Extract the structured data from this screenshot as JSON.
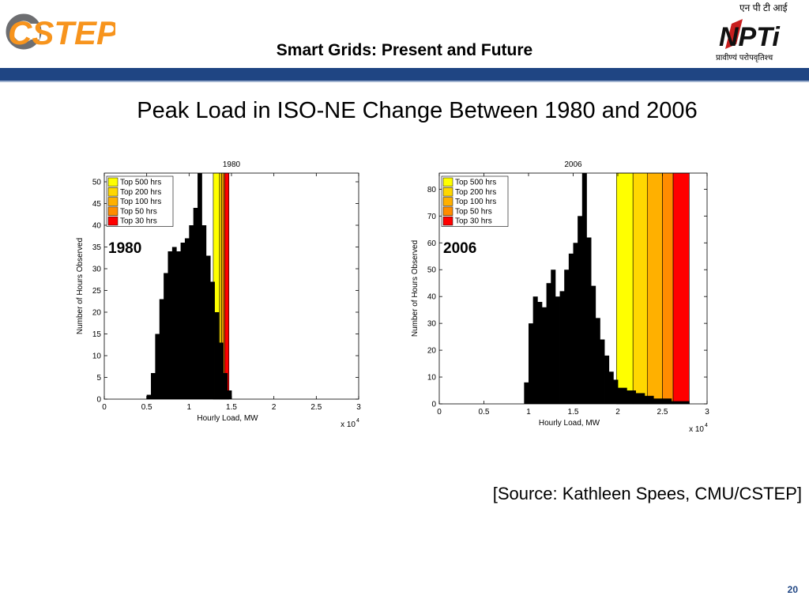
{
  "header": {
    "title": "Smart Grids: Present and Future",
    "logo_left_text": "CSTEP",
    "logo_right_text": "NPTi",
    "logo_right_top_text": "एन पी टी आई",
    "logo_right_bottom_text": "प्रावीण्यं परोपवृतिश्च",
    "bar_color": "#1f4583"
  },
  "slide": {
    "title": "Peak Load in ISO-NE Change Between 1980 and 2006",
    "source": "[Source: Kathleen Spees, CMU/CSTEP]",
    "page_number": "20"
  },
  "chart_data": [
    {
      "type": "bar",
      "title": "1980",
      "year_label": "1980",
      "xlabel": "Hourly Load, MW",
      "ylabel": "Number of Hours Observed",
      "x_multiplier": "x 10",
      "x_exponent": "4",
      "xlim": [
        0,
        3
      ],
      "ylim": [
        0,
        52
      ],
      "xticks": [
        "0",
        "0.5",
        "1",
        "1.5",
        "2",
        "2.5",
        "3"
      ],
      "yticks": [
        "0",
        "5",
        "10",
        "15",
        "20",
        "25",
        "30",
        "35",
        "40",
        "45",
        "50"
      ],
      "grid": false,
      "legend_position": "top-left",
      "bands": [
        {
          "name": "Top 500 hrs",
          "from": 1.285,
          "to": 1.36,
          "color": "#ffff00"
        },
        {
          "name": "Top 200 hrs",
          "from": 1.36,
          "to": 1.385,
          "color": "#ffd700"
        },
        {
          "name": "Top 100 hrs",
          "from": 1.385,
          "to": 1.405,
          "color": "#ffb000"
        },
        {
          "name": "Top 50 hrs",
          "from": 1.405,
          "to": 1.42,
          "color": "#ff8c00"
        },
        {
          "name": "Top 30 hrs",
          "from": 1.42,
          "to": 1.47,
          "color": "#ff0000"
        }
      ],
      "histogram": {
        "bins": [
          0.5,
          0.55,
          0.6,
          0.65,
          0.7,
          0.75,
          0.8,
          0.85,
          0.9,
          0.95,
          1.0,
          1.05,
          1.1,
          1.15,
          1.2,
          1.25,
          1.3,
          1.35,
          1.4,
          1.45,
          1.5
        ],
        "counts": [
          1,
          6,
          15,
          23,
          29,
          34,
          35,
          34,
          36,
          37,
          40,
          44,
          52,
          40,
          33,
          27,
          20,
          13,
          6,
          2,
          0
        ]
      }
    },
    {
      "type": "bar",
      "title": "2006",
      "year_label": "2006",
      "xlabel": "Hourly Load, MW",
      "ylabel": "Number of Hours Observed",
      "x_multiplier": "x 10",
      "x_exponent": "4",
      "xlim": [
        0,
        3
      ],
      "ylim": [
        0,
        86
      ],
      "xticks": [
        "0",
        "0.5",
        "1",
        "1.5",
        "2",
        "2.5",
        "3"
      ],
      "yticks": [
        "0",
        "10",
        "20",
        "30",
        "40",
        "50",
        "60",
        "70",
        "80"
      ],
      "grid": false,
      "legend_position": "top-left",
      "bands": [
        {
          "name": "Top 500 hrs",
          "from": 1.985,
          "to": 2.17,
          "color": "#ffff00"
        },
        {
          "name": "Top 200 hrs",
          "from": 2.17,
          "to": 2.33,
          "color": "#ffd700"
        },
        {
          "name": "Top 100 hrs",
          "from": 2.33,
          "to": 2.5,
          "color": "#ffb000"
        },
        {
          "name": "Top 50 hrs",
          "from": 2.5,
          "to": 2.62,
          "color": "#ff8c00"
        },
        {
          "name": "Top 30 hrs",
          "from": 2.62,
          "to": 2.8,
          "color": "#ff0000"
        }
      ],
      "histogram": {
        "bins": [
          0.95,
          1.0,
          1.05,
          1.1,
          1.15,
          1.2,
          1.25,
          1.3,
          1.35,
          1.4,
          1.45,
          1.5,
          1.55,
          1.6,
          1.65,
          1.7,
          1.75,
          1.8,
          1.85,
          1.9,
          1.95,
          2.0,
          2.1,
          2.2,
          2.3,
          2.4,
          2.5,
          2.6,
          2.7,
          2.8
        ],
        "counts": [
          8,
          30,
          40,
          38,
          36,
          45,
          50,
          40,
          42,
          50,
          56,
          60,
          70,
          86,
          62,
          44,
          32,
          24,
          18,
          12,
          9,
          6,
          5,
          4,
          3,
          2,
          2,
          1,
          1,
          0
        ]
      }
    }
  ]
}
